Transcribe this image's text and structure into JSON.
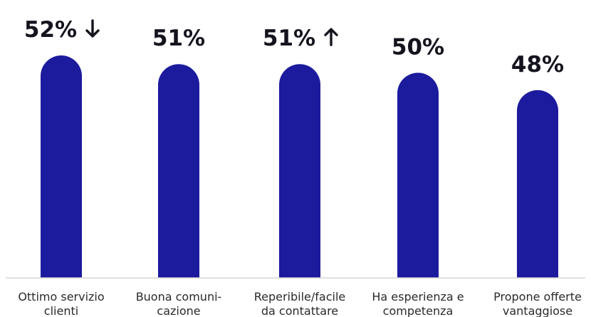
{
  "chart_data": {
    "type": "bar",
    "categories": [
      [
        "Ottimo servizio",
        "clienti"
      ],
      [
        "Buona comuni-",
        "cazione"
      ],
      [
        "Reperibile/facile",
        "da contattare"
      ],
      [
        "Ha esperienza e",
        "competenza"
      ],
      [
        "Propone offerte",
        "vantaggiose"
      ]
    ],
    "values": [
      52,
      51,
      51,
      50,
      48
    ],
    "value_labels": [
      "52%",
      "51%",
      "51%",
      "50%",
      "48%"
    ],
    "trend": [
      "down",
      "",
      "up",
      "",
      ""
    ],
    "unit": "%",
    "bar_color": "#1c1b9e",
    "grid": false,
    "legend": "none"
  }
}
